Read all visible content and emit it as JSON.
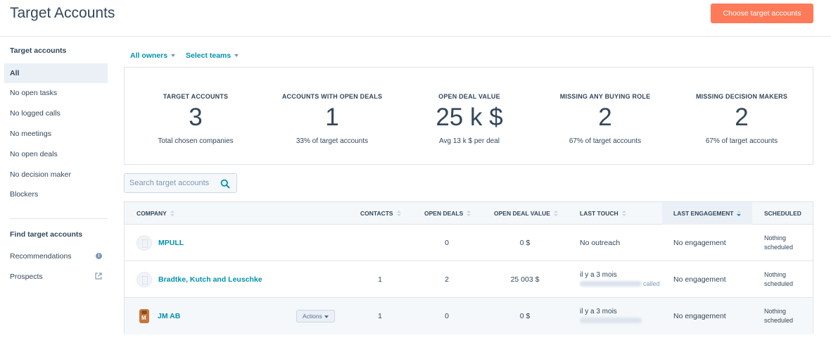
{
  "header": {
    "title": "Target Accounts",
    "cta_label": "Choose target accounts"
  },
  "colors": {
    "accent": "#ff7a59",
    "link": "#0091ae",
    "text": "#33475b",
    "muted": "#7c98b6"
  },
  "sidebar": {
    "heading": "Target accounts",
    "items": [
      {
        "label": "All",
        "active": true
      },
      {
        "label": "No open tasks"
      },
      {
        "label": "No logged calls"
      },
      {
        "label": "No meetings"
      },
      {
        "label": "No open deals"
      },
      {
        "label": "No decision maker"
      },
      {
        "label": "Blockers"
      }
    ],
    "find_heading": "Find target accounts",
    "find_items": [
      {
        "label": "Recommendations",
        "icon": "info-icon",
        "icon_glyph": "i"
      },
      {
        "label": "Prospects",
        "icon": "external-link-icon"
      }
    ]
  },
  "filters": {
    "owners": "All owners",
    "teams": "Select teams"
  },
  "stats": [
    {
      "label": "TARGET ACCOUNTS",
      "value": "3",
      "sub": "Total chosen companies"
    },
    {
      "label": "ACCOUNTS WITH OPEN DEALS",
      "value": "1",
      "sub": "33% of target accounts"
    },
    {
      "label": "OPEN DEAL VALUE",
      "value": "25 k $",
      "sub": "Avg 13 k $ per deal"
    },
    {
      "label": "MISSING ANY BUYING ROLE",
      "value": "2",
      "sub": "67% of target accounts"
    },
    {
      "label": "MISSING DECISION MAKERS",
      "value": "2",
      "sub": "67% of target accounts"
    }
  ],
  "search": {
    "placeholder": "Search target accounts"
  },
  "table": {
    "columns": [
      "COMPANY",
      "CONTACTS",
      "OPEN DEALS",
      "OPEN DEAL VALUE",
      "LAST TOUCH",
      "LAST ENGAGEMENT",
      "SCHEDULED"
    ],
    "sorted_column": "LAST ENGAGEMENT",
    "rows": [
      {
        "company": "MPULL",
        "contacts": "",
        "open_deals": "0",
        "deal_value": "0 $",
        "last_touch": "No outreach",
        "last_touch_detail": "",
        "engagement": "No engagement",
        "scheduled_1": "Nothing",
        "scheduled_2": "scheduled"
      },
      {
        "company": "Bradtke, Kutch and Leuschke",
        "contacts": "1",
        "open_deals": "2",
        "deal_value": "25 003 $",
        "last_touch": "il y a 3 mois",
        "last_touch_detail": "called",
        "engagement": "No engagement",
        "scheduled_1": "Nothing",
        "scheduled_2": "scheduled"
      },
      {
        "company": "JM AB",
        "actions_label": "Actions",
        "logo_letter": "M",
        "contacts": "1",
        "open_deals": "0",
        "deal_value": "0 $",
        "last_touch": "il y a 3 mois",
        "last_touch_detail": "",
        "engagement": "No engagement",
        "scheduled_1": "Nothing",
        "scheduled_2": "scheduled"
      }
    ]
  }
}
